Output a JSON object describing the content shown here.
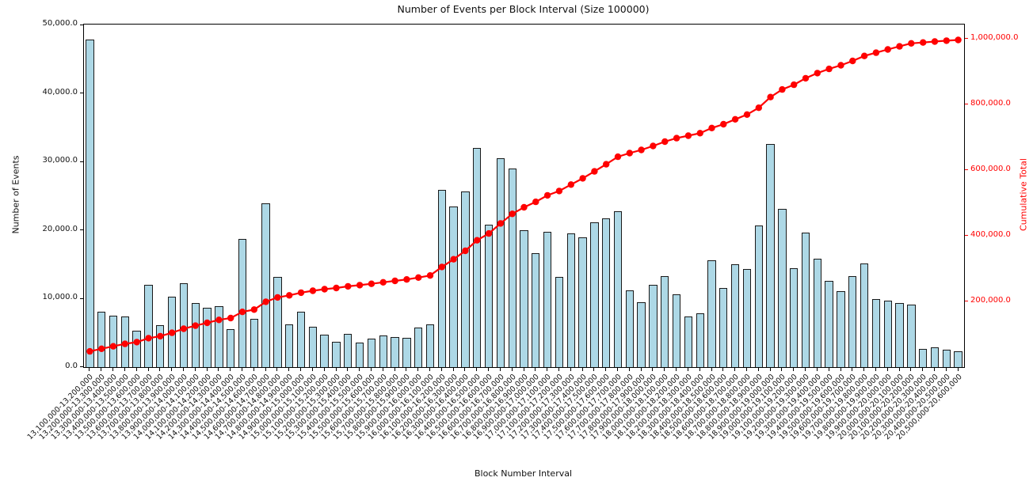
{
  "chart_data": {
    "type": "bar",
    "title": "Number of Events per Block Interval (Size 100000)",
    "xlabel": "Block Number Interval",
    "ylabel_left": "Number of Events",
    "ylabel_right": "Cumulative Total",
    "grid": false,
    "legend": "none",
    "bar_color": "#add8e6",
    "bar_edge_color": "#1a1a1a",
    "line_color": "#ff0000",
    "ylim_left": [
      0,
      50100
    ],
    "ylim_right": [
      0,
      1043500
    ],
    "yticks_left": {
      "values": [
        0,
        10000,
        20000,
        30000,
        40000,
        50000
      ],
      "labels": [
        "0.0",
        "10,000.0",
        "20,000.0",
        "30,000.0",
        "40,000.0",
        "50,000.0"
      ]
    },
    "yticks_right": {
      "values": [
        200000,
        400000,
        600000,
        800000,
        1000000
      ],
      "labels": [
        "200,000.0",
        "400,000.0",
        "600,000.0",
        "800,000.0",
        "1,000,000.0"
      ]
    },
    "categories": [
      "13,100,000-13,200,000",
      "13,200,000-13,300,000",
      "13,300,000-13,400,000",
      "13,400,000-13,500,000",
      "13,500,000-13,600,000",
      "13,600,000-13,700,000",
      "13,700,000-13,800,000",
      "13,800,000-13,900,000",
      "13,900,000-14,000,000",
      "14,000,000-14,100,000",
      "14,100,000-14,200,000",
      "14,200,000-14,300,000",
      "14,300,000-14,400,000",
      "14,400,000-14,500,000",
      "14,500,000-14,600,000",
      "14,600,000-14,700,000",
      "14,700,000-14,800,000",
      "14,800,000-14,900,000",
      "14,900,000-15,000,000",
      "15,000,000-15,100,000",
      "15,100,000-15,200,000",
      "15,200,000-15,300,000",
      "15,300,000-15,400,000",
      "15,400,000-15,500,000",
      "15,500,000-15,600,000",
      "15,600,000-15,700,000",
      "15,700,000-15,800,000",
      "15,800,000-15,900,000",
      "15,900,000-16,000,000",
      "16,000,000-16,100,000",
      "16,100,000-16,200,000",
      "16,200,000-16,300,000",
      "16,300,000-16,400,000",
      "16,400,000-16,500,000",
      "16,500,000-16,600,000",
      "16,600,000-16,700,000",
      "16,700,000-16,800,000",
      "16,800,000-16,900,000",
      "16,900,000-17,000,000",
      "17,000,000-17,100,000",
      "17,100,000-17,200,000",
      "17,200,000-17,300,000",
      "17,300,000-17,400,000",
      "17,400,000-17,500,000",
      "17,500,000-17,600,000",
      "17,600,000-17,700,000",
      "17,700,000-17,800,000",
      "17,800,000-17,900,000",
      "17,900,000-18,000,000",
      "18,000,000-18,100,000",
      "18,100,000-18,200,000",
      "18,200,000-18,300,000",
      "18,300,000-18,400,000",
      "18,400,000-18,500,000",
      "18,500,000-18,600,000",
      "18,600,000-18,700,000",
      "18,700,000-18,800,000",
      "18,800,000-18,900,000",
      "18,900,000-19,000,000",
      "19,000,000-19,100,000",
      "19,100,000-19,200,000",
      "19,200,000-19,300,000",
      "19,300,000-19,400,000",
      "19,400,000-19,500,000",
      "19,500,000-19,600,000",
      "19,600,000-19,700,000",
      "19,700,000-19,800,000",
      "19,800,000-19,900,000",
      "19,900,000-20,000,000",
      "20,000,000-20,100,000",
      "20,100,000-20,200,000",
      "20,200,000-20,300,000",
      "20,300,000-20,400,000",
      "20,400,000-20,500,000",
      "20,500,000-20,600,000"
    ],
    "series": [
      {
        "name": "Number of Events",
        "type": "bar",
        "axis": "left",
        "values": [
          47900,
          8100,
          7500,
          7400,
          5300,
          12000,
          6100,
          10300,
          12300,
          9400,
          8700,
          8900,
          5500,
          18700,
          7100,
          23900,
          13200,
          6300,
          8100,
          5900,
          4800,
          3700,
          4900,
          3600,
          4200,
          4600,
          4400,
          4300,
          5800,
          6200,
          25900,
          23500,
          25700,
          32100,
          20800,
          30600,
          29100,
          20000,
          16700,
          19800,
          13200,
          19500,
          19000,
          21200,
          21800,
          22800,
          11200,
          9500,
          12000,
          13300,
          10600,
          7400,
          7900,
          15600,
          11600,
          15000,
          14300,
          20700,
          32600,
          23100,
          14500,
          19700,
          15800,
          12600,
          11100,
          13300,
          15200,
          10000,
          9700,
          9400,
          9200,
          2700,
          2900,
          2600,
          2300
        ]
      },
      {
        "name": "Cumulative Total",
        "type": "line",
        "axis": "right",
        "values": [
          47900,
          56000,
          63500,
          70900,
          76200,
          88200,
          94300,
          104600,
          116900,
          126300,
          135000,
          143900,
          149400,
          168100,
          175200,
          199100,
          212300,
          218600,
          226700,
          232600,
          237400,
          241100,
          246000,
          249600,
          253800,
          258400,
          262800,
          267100,
          272900,
          279100,
          305000,
          328500,
          354200,
          386300,
          407100,
          437700,
          466800,
          486800,
          503500,
          523300,
          536500,
          556000,
          575000,
          596200,
          618000,
          640800,
          652000,
          661500,
          673500,
          686800,
          697400,
          704800,
          712700,
          728300,
          739900,
          754900,
          769200,
          789900,
          822500,
          845600,
          860100,
          879800,
          895600,
          908200,
          919300,
          932600,
          947800,
          957800,
          967500,
          976900,
          986100,
          988800,
          991700,
          994300,
          996600
        ]
      }
    ]
  }
}
